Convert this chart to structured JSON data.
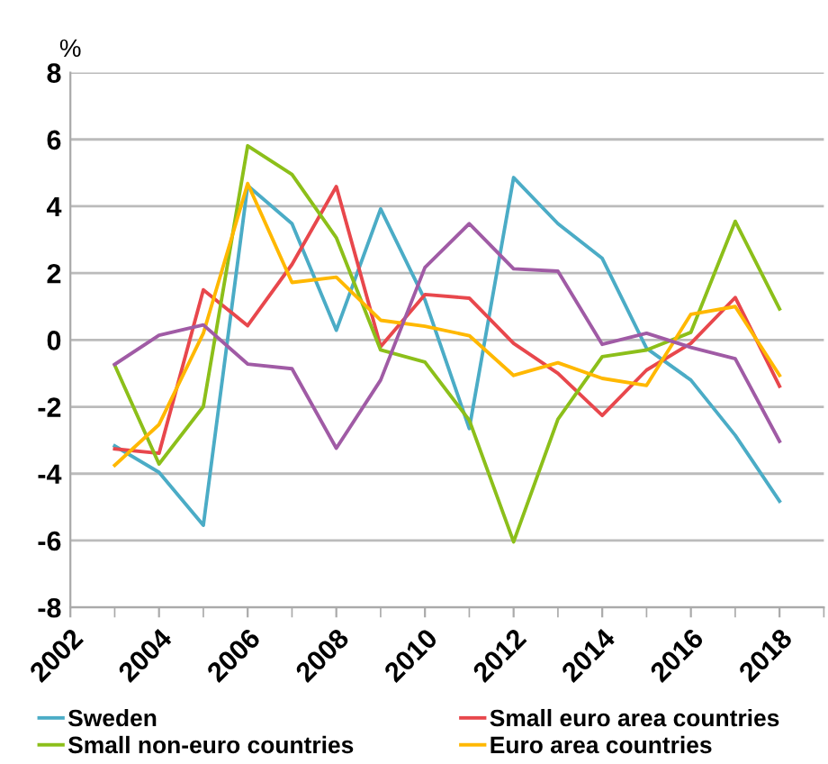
{
  "chart_data": {
    "type": "line",
    "ylabel": "%",
    "x": [
      2003,
      2004,
      2005,
      2006,
      2007,
      2008,
      2009,
      2010,
      2011,
      2012,
      2013,
      2014,
      2015,
      2016,
      2017,
      2018
    ],
    "series": [
      {
        "name": "Sweden",
        "color": "#4bacc6",
        "values": [
          -3.17,
          -3.96,
          -5.54,
          4.62,
          3.48,
          0.29,
          3.92,
          1.2,
          -2.65,
          4.86,
          3.48,
          2.44,
          -0.25,
          -1.2,
          -2.85,
          -4.82
        ]
      },
      {
        "name": "Small euro area countries",
        "color": "#e8474c",
        "values": [
          -3.26,
          -3.39,
          1.5,
          0.43,
          2.26,
          4.59,
          -0.2,
          1.36,
          1.25,
          -0.1,
          -1.0,
          -2.26,
          -0.9,
          -0.1,
          1.27,
          -1.38
        ]
      },
      {
        "name": "Small non-euro countries",
        "color": "#8cbf1a",
        "values": [
          -0.75,
          -3.71,
          -1.99,
          5.81,
          4.95,
          3.06,
          -0.3,
          -0.66,
          -2.4,
          -6.04,
          -2.37,
          -0.5,
          -0.3,
          0.23,
          3.55,
          0.93
        ]
      },
      {
        "name": "Euro area countries",
        "color": "#ffb800",
        "values": [
          -3.75,
          -2.53,
          0.2,
          4.68,
          1.72,
          1.88,
          0.59,
          0.41,
          0.13,
          -1.06,
          -0.68,
          -1.15,
          -1.36,
          0.77,
          1.0,
          -1.06
        ]
      },
      {
        "color": "#a05ba5",
        "values": [
          -0.73,
          0.14,
          0.45,
          -0.72,
          -0.86,
          -3.24,
          -1.2,
          2.17,
          3.48,
          2.13,
          2.06,
          -0.13,
          0.2,
          -0.22,
          -0.56,
          -3.03
        ]
      }
    ],
    "xlim": [
      2002,
      2019
    ],
    "xticks": [
      2002,
      2004,
      2006,
      2008,
      2010,
      2012,
      2014,
      2016,
      2018
    ],
    "ylim": [
      -8,
      8
    ],
    "yticks": [
      -8,
      -6,
      -4,
      -2,
      0,
      2,
      4,
      6,
      8
    ],
    "grid": "y",
    "legend": "bottom",
    "marker": "none",
    "line_style": "solid"
  }
}
